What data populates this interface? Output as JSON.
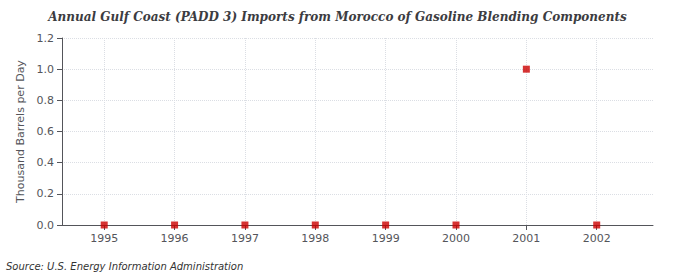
{
  "chart_data": {
    "type": "scatter",
    "title": "Annual Gulf Coast (PADD 3) Imports from Morocco of Gasoline Blending Components",
    "ylabel": "Thousand Barrels per Day",
    "source": "Source: U.S. Energy Information Administration",
    "x": [
      1995,
      1996,
      1997,
      1998,
      1999,
      2000,
      2001,
      2002
    ],
    "values": [
      0,
      0,
      0,
      0,
      0,
      0,
      1.0,
      0
    ],
    "color": "#cc0000",
    "marker": "square",
    "xlim": [
      1994.4,
      2002.8
    ],
    "xticks": [
      1995,
      1996,
      1997,
      1998,
      1999,
      2000,
      2001,
      2002
    ],
    "ylim": [
      0.0,
      1.2
    ],
    "yticks": [
      {
        "value": 0.0,
        "label": "0.0"
      },
      {
        "value": 0.2,
        "label": "0.2"
      },
      {
        "value": 0.4,
        "label": "0.4"
      },
      {
        "value": 0.6,
        "label": "0.6"
      },
      {
        "value": 0.8,
        "label": "0.8"
      },
      {
        "value": 1.0,
        "label": "1.0"
      },
      {
        "value": 1.2,
        "label": "1.2"
      }
    ],
    "grid": true
  }
}
